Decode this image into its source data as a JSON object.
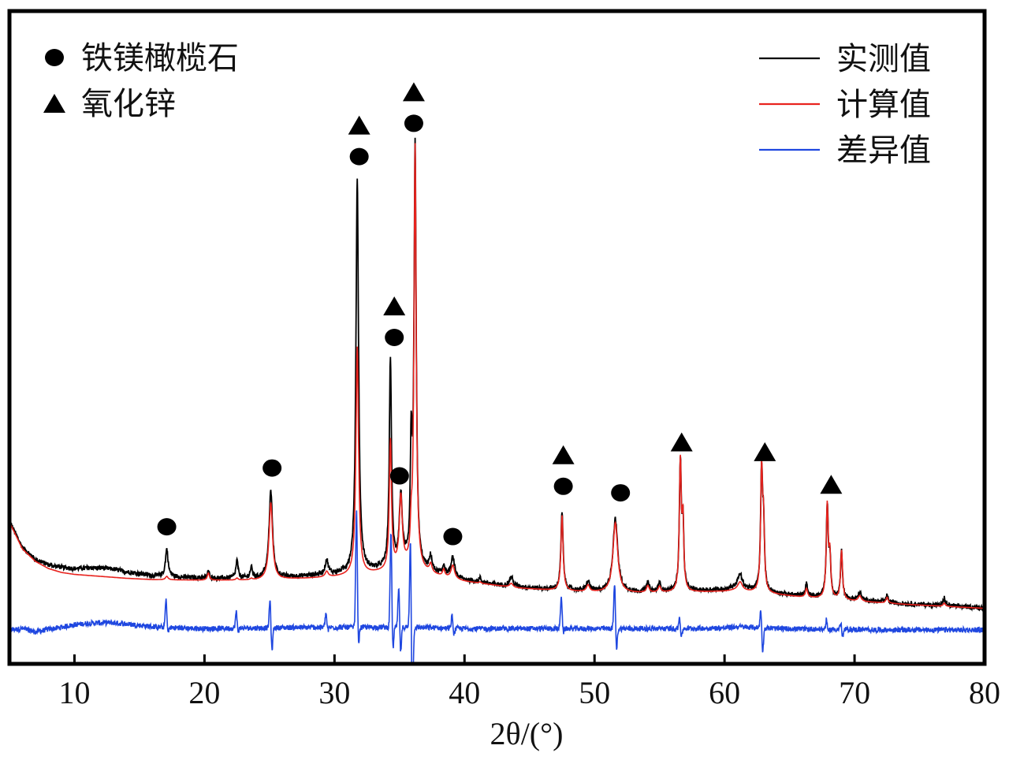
{
  "chart_data": {
    "type": "line",
    "xlabel": "2θ/(°)",
    "xlim": [
      5,
      80
    ],
    "ylim": [
      0,
      1
    ],
    "x_ticks": [
      10,
      20,
      30,
      40,
      50,
      60,
      70,
      80
    ],
    "y_ticks": [],
    "legend_position": "top-right",
    "marker_legend_position": "top-left",
    "series": [
      {
        "name": "实测值",
        "color": "#000000"
      },
      {
        "name": "计算值",
        "color": "#e8231e"
      },
      {
        "name": "差异值",
        "color": "#1f47e0"
      }
    ],
    "observed_baseline": [
      [
        5.0,
        0.219
      ],
      [
        6.0,
        0.178
      ],
      [
        7.0,
        0.16
      ],
      [
        8.0,
        0.152
      ],
      [
        9.0,
        0.148
      ],
      [
        10.0,
        0.146
      ],
      [
        11.0,
        0.147
      ],
      [
        12.0,
        0.147
      ],
      [
        13.0,
        0.145
      ],
      [
        14.0,
        0.141
      ],
      [
        15.0,
        0.138
      ],
      [
        16.0,
        0.135
      ],
      [
        18.0,
        0.133
      ],
      [
        20.0,
        0.131
      ],
      [
        24.0,
        0.131
      ],
      [
        26.0,
        0.132
      ],
      [
        28.0,
        0.135
      ],
      [
        30.0,
        0.137
      ],
      [
        32.0,
        0.14
      ],
      [
        34.0,
        0.145
      ],
      [
        35.5,
        0.15
      ],
      [
        37.0,
        0.143
      ],
      [
        38.0,
        0.137
      ],
      [
        40.0,
        0.128
      ],
      [
        42.0,
        0.122
      ],
      [
        44.0,
        0.118
      ],
      [
        46.0,
        0.115
      ],
      [
        48.0,
        0.113
      ],
      [
        50.0,
        0.111
      ],
      [
        52.0,
        0.11
      ],
      [
        54.0,
        0.11
      ],
      [
        56.0,
        0.111
      ],
      [
        58.0,
        0.112
      ],
      [
        60.0,
        0.114
      ],
      [
        61.0,
        0.118
      ],
      [
        62.0,
        0.113
      ],
      [
        64.0,
        0.108
      ],
      [
        66.0,
        0.104
      ],
      [
        68.0,
        0.101
      ],
      [
        70.0,
        0.098
      ],
      [
        72.0,
        0.095
      ],
      [
        74.0,
        0.092
      ],
      [
        76.0,
        0.09
      ],
      [
        78.0,
        0.088
      ],
      [
        80.0,
        0.086
      ]
    ],
    "calculated_baseline": [
      [
        5.0,
        0.217
      ],
      [
        6.0,
        0.176
      ],
      [
        7.0,
        0.157
      ],
      [
        8.0,
        0.146
      ],
      [
        9.0,
        0.14
      ],
      [
        10.0,
        0.137
      ],
      [
        12.0,
        0.134
      ],
      [
        14.0,
        0.131
      ],
      [
        16.0,
        0.129
      ],
      [
        20.0,
        0.128
      ],
      [
        24.0,
        0.128
      ],
      [
        28.0,
        0.131
      ],
      [
        30.0,
        0.133
      ],
      [
        32.0,
        0.136
      ],
      [
        34.0,
        0.141
      ],
      [
        35.5,
        0.146
      ],
      [
        37.0,
        0.139
      ],
      [
        38.0,
        0.134
      ],
      [
        40.0,
        0.126
      ],
      [
        44.0,
        0.116
      ],
      [
        48.0,
        0.111
      ],
      [
        52.0,
        0.108
      ],
      [
        56.0,
        0.109
      ],
      [
        60.0,
        0.111
      ],
      [
        61.0,
        0.113
      ],
      [
        62.0,
        0.11
      ],
      [
        66.0,
        0.102
      ],
      [
        70.0,
        0.096
      ],
      [
        74.0,
        0.091
      ],
      [
        78.0,
        0.087
      ],
      [
        80.0,
        0.085
      ]
    ],
    "peaks": [
      {
        "x": 17.1,
        "observed": 0.176,
        "calculated": 0.134,
        "width": 0.12
      },
      {
        "x": 20.3,
        "observed": 0.141,
        "calculated": 0.139,
        "width": 0.1
      },
      {
        "x": 22.5,
        "observed": 0.158,
        "calculated": 0.131,
        "width": 0.1
      },
      {
        "x": 23.6,
        "observed": 0.147,
        "calculated": 0.13,
        "width": 0.1
      },
      {
        "x": 25.1,
        "observed": 0.265,
        "calculated": 0.247,
        "width": 0.16
      },
      {
        "x": 29.4,
        "observed": 0.158,
        "calculated": 0.141,
        "width": 0.14
      },
      {
        "x": 31.75,
        "observed": 0.745,
        "calculated": 0.485,
        "width": 0.12
      },
      {
        "x": 34.3,
        "observed": 0.465,
        "calculated": 0.34,
        "width": 0.1
      },
      {
        "x": 35.1,
        "observed": 0.253,
        "calculated": 0.253,
        "width": 0.14
      },
      {
        "x": 35.9,
        "observed": 0.319,
        "calculated": 0.188,
        "width": 0.08
      },
      {
        "x": 36.2,
        "observed": 0.792,
        "calculated": 0.792,
        "width": 0.1
      },
      {
        "x": 37.4,
        "observed": 0.163,
        "calculated": 0.15,
        "width": 0.12
      },
      {
        "x": 38.4,
        "observed": 0.15,
        "calculated": 0.143,
        "width": 0.1
      },
      {
        "x": 39.1,
        "observed": 0.162,
        "calculated": 0.15,
        "width": 0.16
      },
      {
        "x": 41.2,
        "observed": 0.131,
        "calculated": 0.125,
        "width": 0.1
      },
      {
        "x": 43.6,
        "observed": 0.133,
        "calculated": 0.123,
        "width": 0.16
      },
      {
        "x": 47.5,
        "observed": 0.232,
        "calculated": 0.227,
        "width": 0.1
      },
      {
        "x": 49.5,
        "observed": 0.126,
        "calculated": 0.12,
        "width": 0.14
      },
      {
        "x": 51.6,
        "observed": 0.222,
        "calculated": 0.216,
        "width": 0.22
      },
      {
        "x": 54.1,
        "observed": 0.124,
        "calculated": 0.119,
        "width": 0.12
      },
      {
        "x": 55.0,
        "observed": 0.123,
        "calculated": 0.118,
        "width": 0.12
      },
      {
        "x": 56.6,
        "observed": 0.306,
        "calculated": 0.306,
        "width": 0.09
      },
      {
        "x": 56.8,
        "observed": 0.21,
        "calculated": 0.21,
        "width": 0.08
      },
      {
        "x": 61.2,
        "observed": 0.137,
        "calculated": 0.125,
        "width": 0.2
      },
      {
        "x": 62.85,
        "observed": 0.292,
        "calculated": 0.292,
        "width": 0.09
      },
      {
        "x": 63.0,
        "observed": 0.202,
        "calculated": 0.202,
        "width": 0.08
      },
      {
        "x": 66.3,
        "observed": 0.122,
        "calculated": 0.115,
        "width": 0.1
      },
      {
        "x": 67.9,
        "observed": 0.241,
        "calculated": 0.241,
        "width": 0.09
      },
      {
        "x": 68.1,
        "observed": 0.16,
        "calculated": 0.16,
        "width": 0.08
      },
      {
        "x": 69.0,
        "observed": 0.173,
        "calculated": 0.173,
        "width": 0.09
      },
      {
        "x": 70.4,
        "observed": 0.109,
        "calculated": 0.104,
        "width": 0.14
      },
      {
        "x": 72.5,
        "observed": 0.104,
        "calculated": 0.102,
        "width": 0.1
      },
      {
        "x": 76.9,
        "observed": 0.101,
        "calculated": 0.093,
        "width": 0.1
      }
    ],
    "difference_offset": 0.052,
    "difference_wave": [
      [
        5.0,
        0.0
      ],
      [
        6.0,
        0.002
      ],
      [
        7.0,
        -0.003
      ],
      [
        8.0,
        0.001
      ],
      [
        9.0,
        0.004
      ],
      [
        10.0,
        0.008
      ],
      [
        11.0,
        0.01
      ],
      [
        12.0,
        0.011
      ],
      [
        13.0,
        0.011
      ],
      [
        14.0,
        0.009
      ],
      [
        15.0,
        0.007
      ],
      [
        16.0,
        0.005
      ],
      [
        18.0,
        0.003
      ],
      [
        20.0,
        0.002
      ],
      [
        24.0,
        0.003
      ],
      [
        28.0,
        0.004
      ],
      [
        32.0,
        0.004
      ],
      [
        36.0,
        0.004
      ],
      [
        40.0,
        0.002
      ],
      [
        44.0,
        0.002
      ],
      [
        48.0,
        0.002
      ],
      [
        52.0,
        0.002
      ],
      [
        56.0,
        0.002
      ],
      [
        60.0,
        0.003
      ],
      [
        61.0,
        0.005
      ],
      [
        64.0,
        0.002
      ],
      [
        68.0,
        0.001
      ],
      [
        72.0,
        0.0
      ],
      [
        76.0,
        0.0
      ],
      [
        80.0,
        0.0
      ]
    ],
    "difference_spikes": [
      {
        "x": 17.1,
        "up": 0.042,
        "down": -0.01
      },
      {
        "x": 22.5,
        "up": 0.025,
        "down": -0.006
      },
      {
        "x": 25.1,
        "up": 0.045,
        "down": -0.038
      },
      {
        "x": 29.4,
        "up": 0.022,
        "down": -0.006
      },
      {
        "x": 31.75,
        "up": 0.18,
        "down": -0.032
      },
      {
        "x": 34.4,
        "up": 0.148,
        "down": -0.04
      },
      {
        "x": 35.0,
        "up": 0.062,
        "down": -0.042
      },
      {
        "x": 35.9,
        "up": 0.146,
        "down": -0.16
      },
      {
        "x": 39.1,
        "up": 0.02,
        "down": -0.01
      },
      {
        "x": 47.5,
        "up": 0.05,
        "down": -0.008
      },
      {
        "x": 51.6,
        "up": 0.071,
        "down": -0.035
      },
      {
        "x": 56.6,
        "up": 0.018,
        "down": -0.015
      },
      {
        "x": 62.85,
        "up": 0.03,
        "down": -0.038
      },
      {
        "x": 67.9,
        "up": 0.015,
        "down": -0.006
      },
      {
        "x": 69.0,
        "up": 0.01,
        "down": -0.012
      }
    ],
    "phase_markers": [
      {
        "x": 17.1,
        "y": 0.21,
        "symbols": [
          "circle"
        ]
      },
      {
        "x": 25.2,
        "y": 0.3,
        "symbols": [
          "circle"
        ]
      },
      {
        "x": 31.9,
        "y": 0.777,
        "symbols": [
          "circle",
          "triangle"
        ]
      },
      {
        "x": 34.6,
        "y": 0.5,
        "symbols": [
          "circle",
          "triangle"
        ]
      },
      {
        "x": 35.0,
        "y": 0.288,
        "symbols": [
          "circle"
        ]
      },
      {
        "x": 36.1,
        "y": 0.828,
        "symbols": [
          "circle",
          "triangle"
        ]
      },
      {
        "x": 39.1,
        "y": 0.195,
        "symbols": [
          "circle"
        ]
      },
      {
        "x": 47.6,
        "y": 0.272,
        "symbols": [
          "circle",
          "triangle"
        ]
      },
      {
        "x": 52.0,
        "y": 0.262,
        "symbols": [
          "circle"
        ]
      },
      {
        "x": 56.7,
        "y": 0.34,
        "symbols": [
          "triangle"
        ]
      },
      {
        "x": 63.1,
        "y": 0.325,
        "symbols": [
          "triangle"
        ]
      },
      {
        "x": 68.2,
        "y": 0.275,
        "symbols": [
          "triangle"
        ]
      }
    ],
    "marker_legend": [
      {
        "symbol": "circle",
        "label": "铁镁橄榄石"
      },
      {
        "symbol": "triangle",
        "label": "氧化锌"
      }
    ],
    "grid": false
  }
}
